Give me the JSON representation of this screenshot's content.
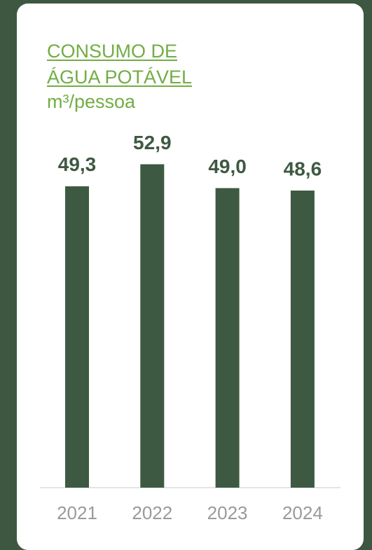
{
  "chart_data": {
    "type": "bar",
    "title": "CONSUMO DE ÁGUA POTÁVEL",
    "subtitle": "m³/pessoa",
    "categories": [
      "2021",
      "2022",
      "2023",
      "2024"
    ],
    "values": [
      49.3,
      52.9,
      49.0,
      48.6
    ],
    "value_labels": [
      "49,3",
      "52,9",
      "49,0",
      "48,6"
    ],
    "color": "#3e5942"
  }
}
